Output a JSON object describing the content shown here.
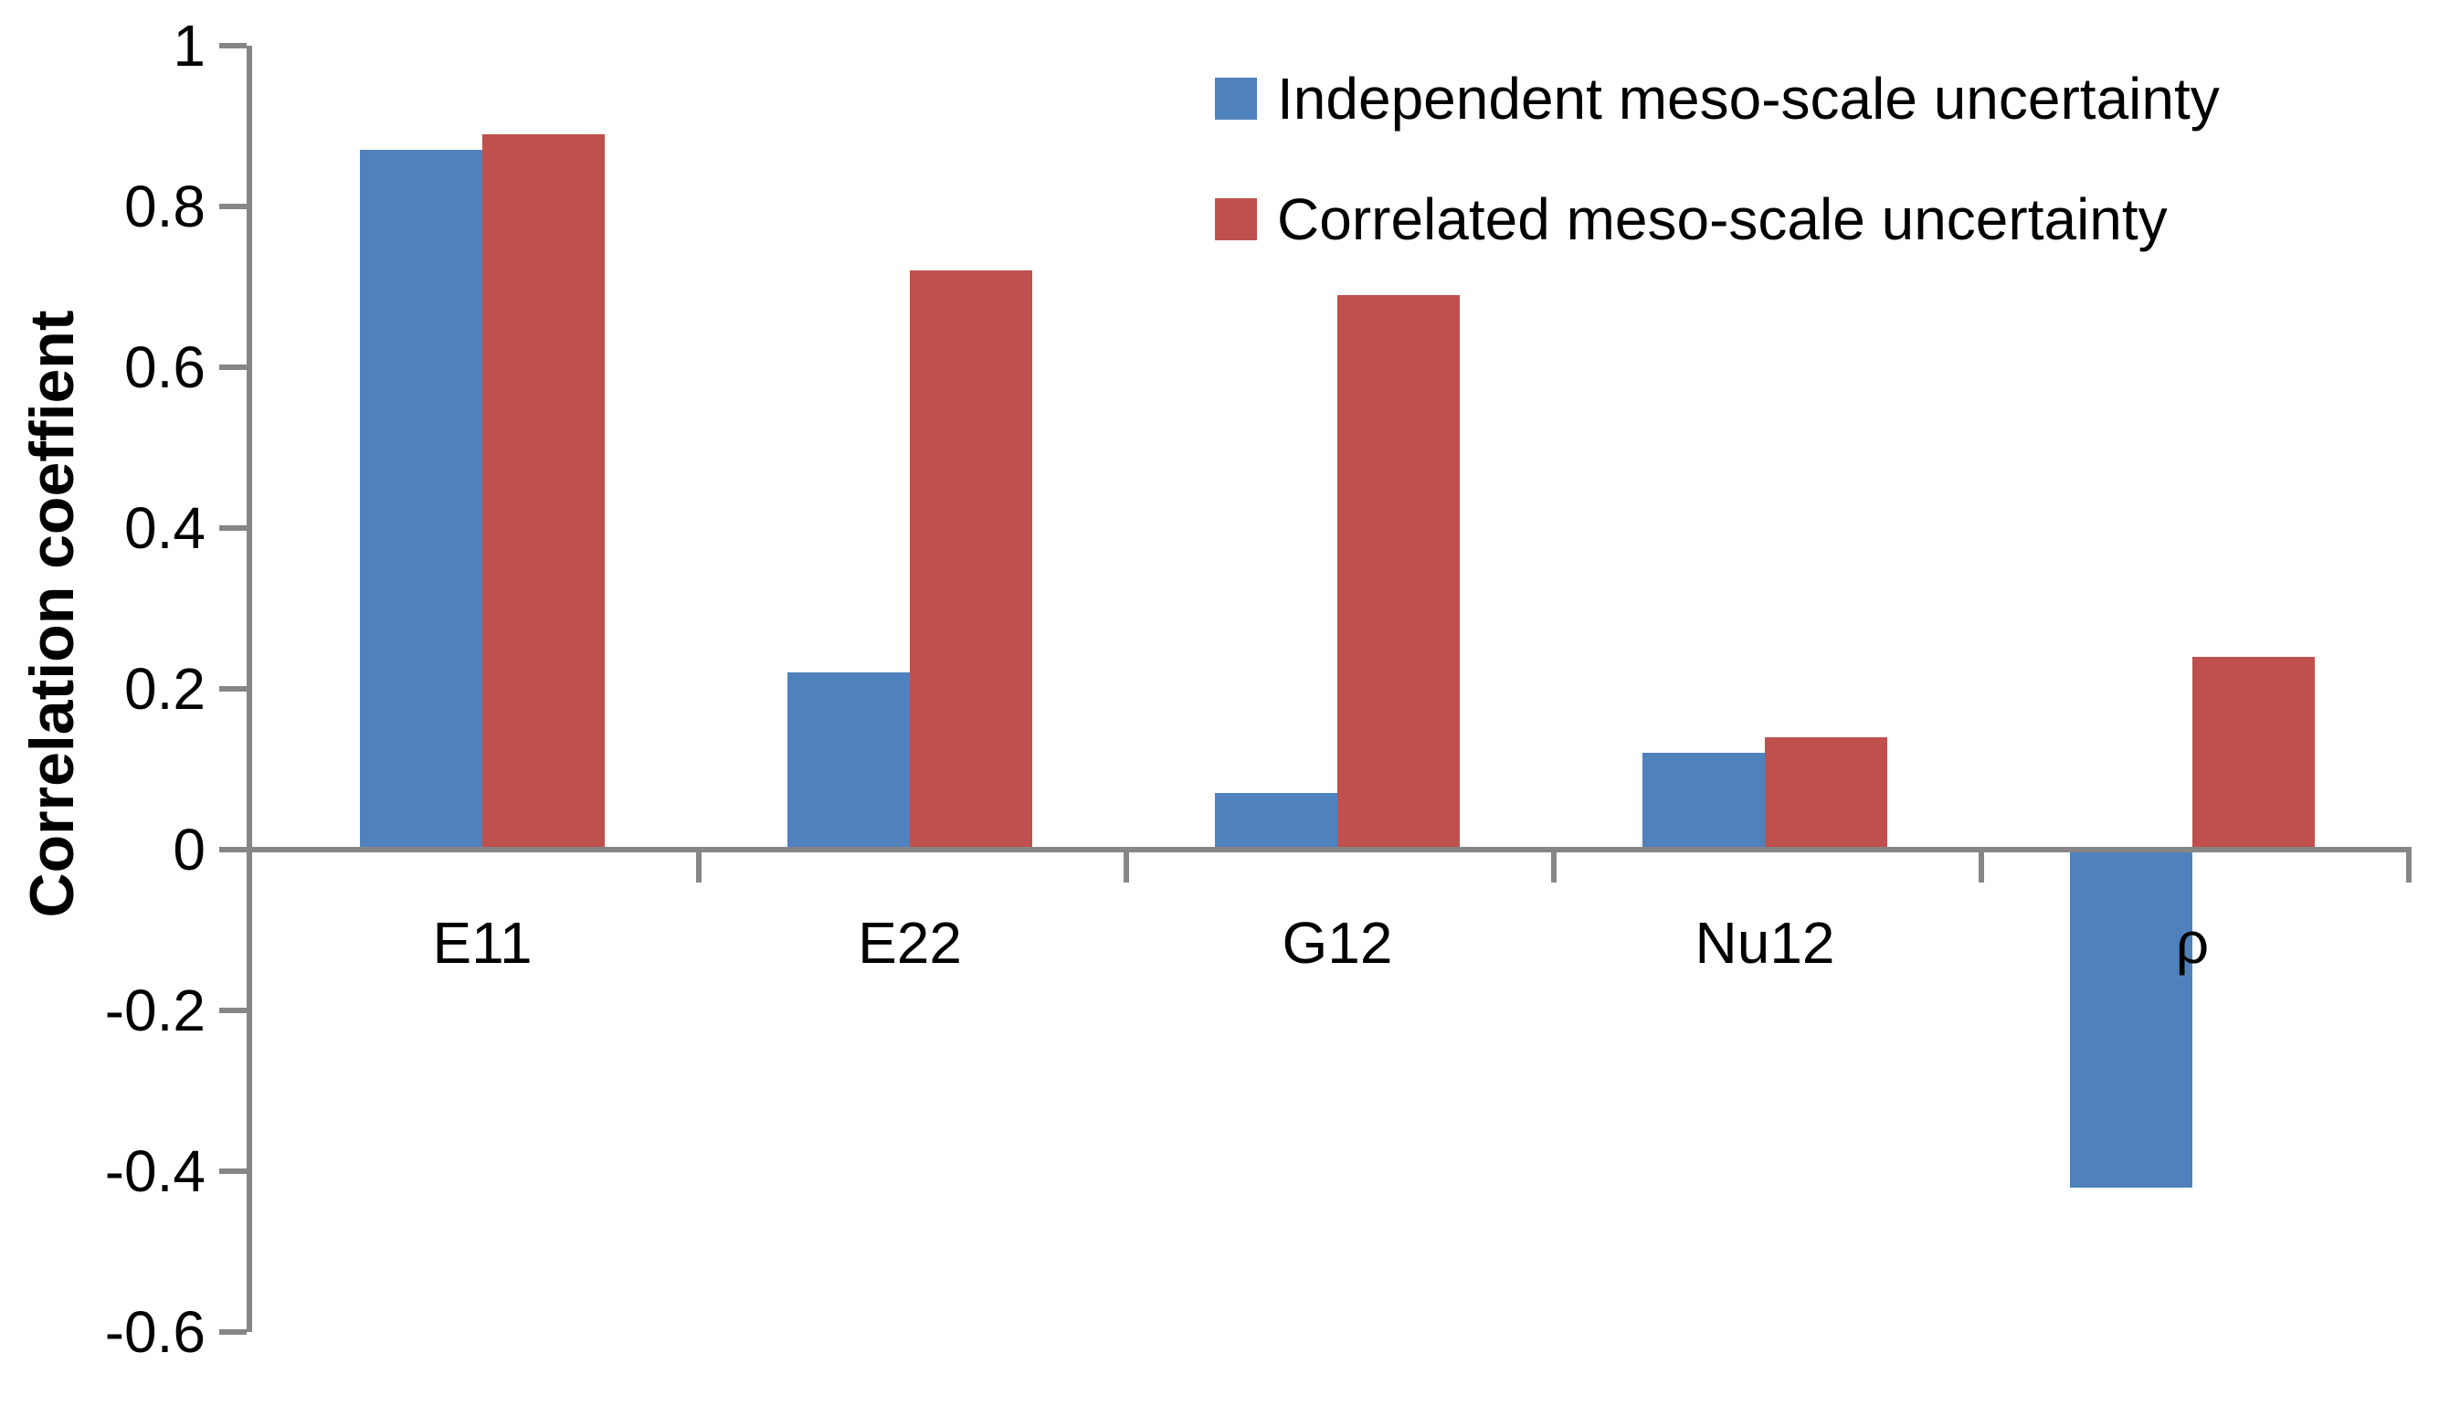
{
  "chart_data": {
    "type": "bar",
    "categories": [
      "E11",
      "E22",
      "G12",
      "Nu12",
      "ρ"
    ],
    "series": [
      {
        "name": "Independent meso-scale uncertainty",
        "color": "#4F81BD",
        "values": [
          0.87,
          0.22,
          0.07,
          0.12,
          -0.42
        ]
      },
      {
        "name": "Correlated meso-scale uncertainty",
        "color": "#C0504D",
        "values": [
          0.89,
          0.72,
          0.69,
          0.14,
          0.24
        ]
      }
    ],
    "title": "",
    "xlabel": "",
    "ylabel": "Correlation coeffient",
    "ylim": [
      -0.6,
      1
    ],
    "ytick_step": 0.2,
    "yticks": [
      "1",
      "0.8",
      "0.6",
      "0.4",
      "0.2",
      "0",
      "-0.2",
      "-0.4",
      "-0.6"
    ],
    "grid": false,
    "legend_position": "top-right",
    "axis_color": "#868686",
    "background": "#FFFFFF",
    "text_color": "#000000"
  }
}
